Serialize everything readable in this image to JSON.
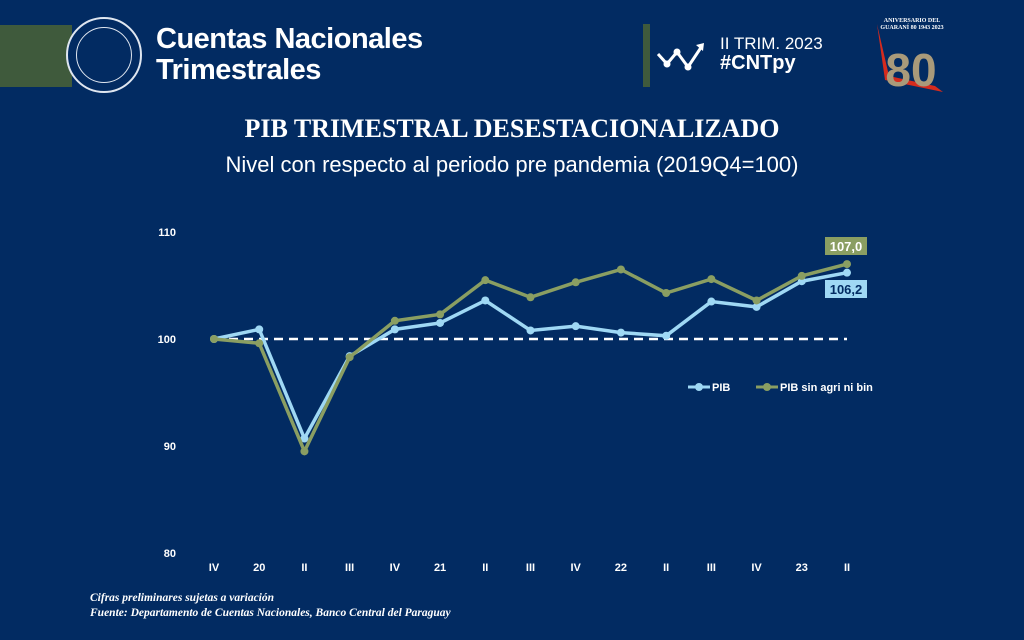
{
  "header": {
    "title_line1": "Cuentas Nacionales",
    "title_line2": "Trimestrales",
    "period": "II TRIM. 2023",
    "hashtag": "#CNTpy",
    "seal_text": "BANCO CENTRAL DEL PARAGUAY",
    "anniversary_text": "ANIVERSARIO DEL GUARANÍ 80 1943 2023"
  },
  "chart_data": {
    "type": "line",
    "title": "PIB TRIMESTRAL DESESTACIONALIZADO",
    "subtitle": "Nivel con respecto al periodo pre pandemia (2019Q4=100)",
    "categories": [
      "IV",
      "20",
      "II",
      "III",
      "IV",
      "21",
      "II",
      "III",
      "IV",
      "22",
      "II",
      "III",
      "IV",
      "23",
      "II"
    ],
    "ylim": [
      80,
      110
    ],
    "yticks": [
      "80",
      "90",
      "100",
      "110"
    ],
    "reference_line": 100,
    "legend_position": "right",
    "series": [
      {
        "name": "PIB",
        "color": "#9fd8f4",
        "values": [
          100,
          100.9,
          90.7,
          98.4,
          100.9,
          101.5,
          103.6,
          100.8,
          101.2,
          100.6,
          100.3,
          103.5,
          103.0,
          105.4,
          106.2
        ],
        "end_label": "106,2"
      },
      {
        "name": "PIB sin agri ni bin",
        "color": "#8a9e62",
        "values": [
          100,
          99.6,
          89.5,
          98.3,
          101.7,
          102.3,
          105.5,
          103.9,
          105.3,
          106.5,
          104.3,
          105.6,
          103.6,
          105.9,
          107.0
        ],
        "end_label": "107,0"
      }
    ]
  },
  "footer": {
    "note": "Cifras preliminares sujetas a variación",
    "source": "Fuente: Departamento de Cuentas Nacionales, Banco Central del Paraguay"
  }
}
